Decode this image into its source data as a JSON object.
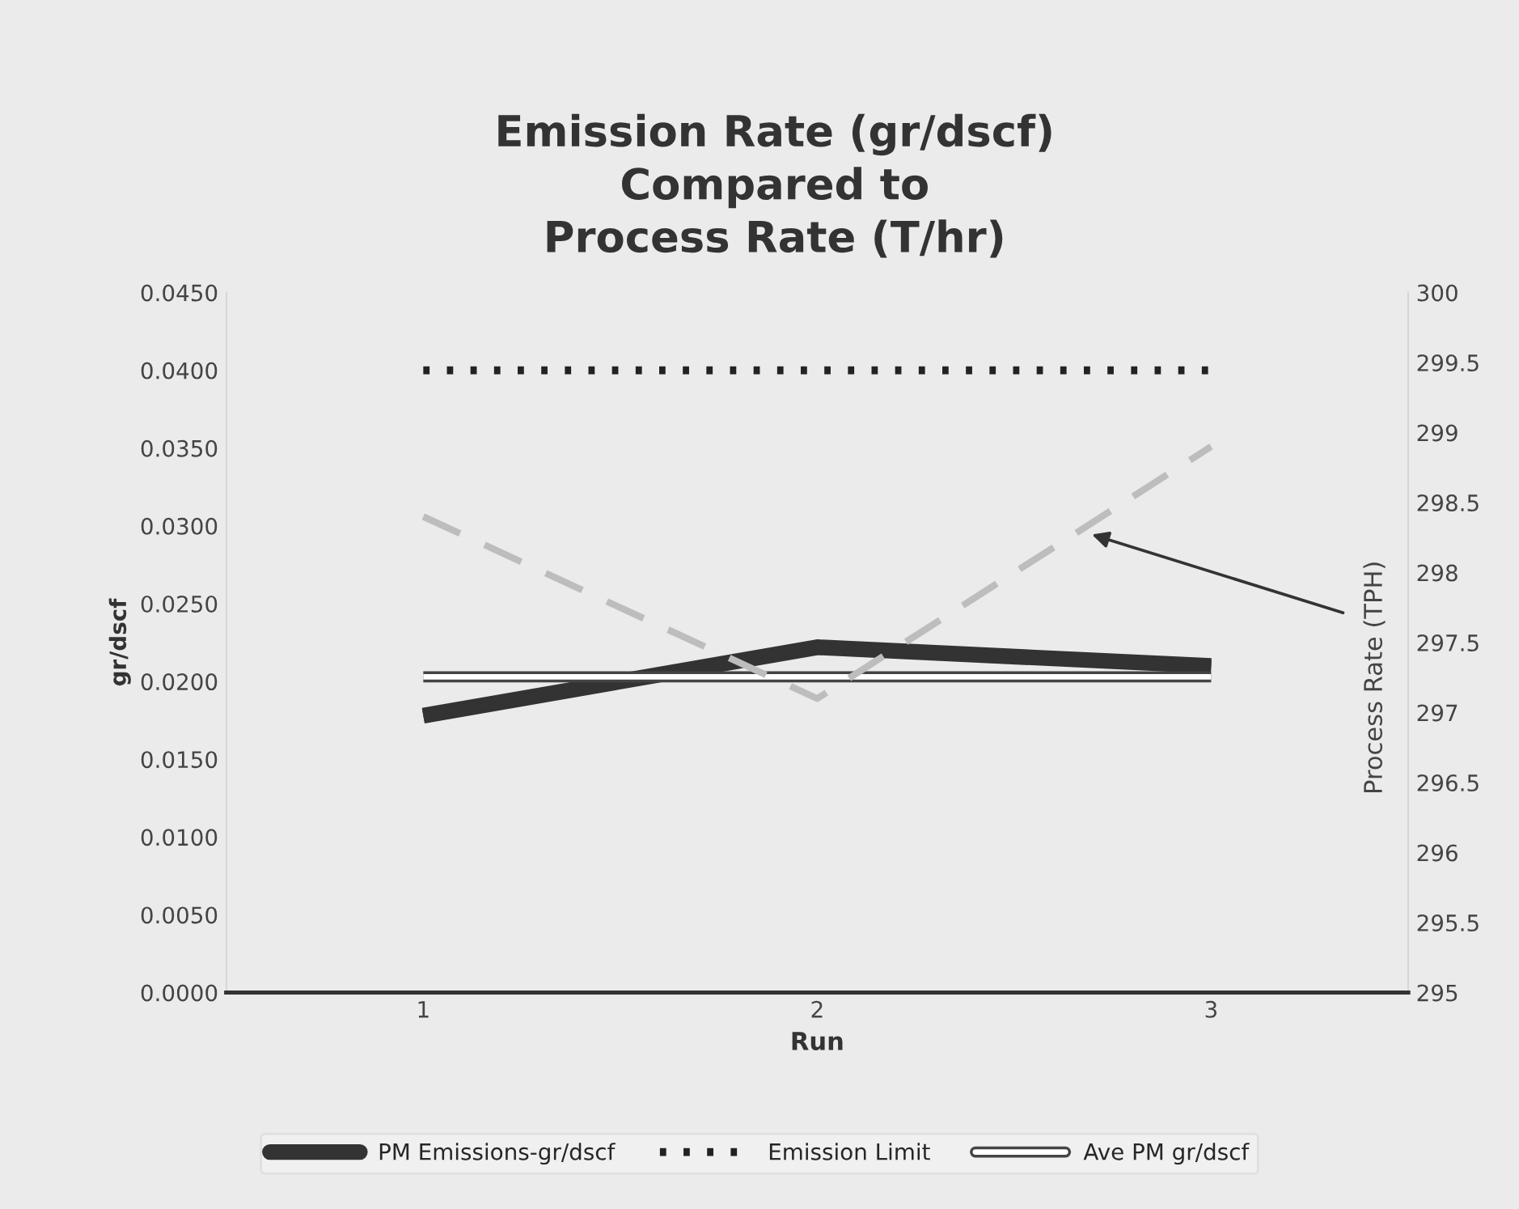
{
  "chart_data": {
    "type": "line",
    "title": "Emission Rate (gr/dscf)\nCompared to\nProcess Rate (T/hr)",
    "xlabel": "Run",
    "ylabel": "gr/dscf",
    "y2label": "Process Rate (TPH)",
    "categories": [
      "1",
      "2",
      "3"
    ],
    "series": [
      {
        "name": "PM Emissions-gr/dscf",
        "color": "#333333",
        "values": [
          0.0178,
          0.0222,
          0.021
        ],
        "line_style": "solid"
      },
      {
        "name": "Emission Limit",
        "color": "#222222",
        "values": [
          0.04,
          0.04,
          0.04
        ],
        "line_style": "dotted"
      },
      {
        "name": "Ave PM gr/dscf",
        "color": "#ffffff",
        "values": [
          0.0203,
          0.0203,
          0.0203
        ],
        "line_style": "solid"
      },
      {
        "color": "#bdbdbd",
        "values": [
          298.4,
          297.1,
          298.9
        ],
        "line_style": "dashed",
        "axis": "y2"
      }
    ],
    "ylim": [
      0,
      0.045
    ],
    "yticks": [
      {
        "value": 0,
        "label": "0.0000"
      },
      {
        "value": 0.005,
        "label": "0.0050"
      },
      {
        "value": 0.01,
        "label": "0.0100"
      },
      {
        "value": 0.015,
        "label": "0.0150"
      },
      {
        "value": 0.02,
        "label": "0.0200"
      },
      {
        "value": 0.025,
        "label": "0.0250"
      },
      {
        "value": 0.03,
        "label": "0.0300"
      },
      {
        "value": 0.035,
        "label": "0.0350"
      },
      {
        "value": 0.04,
        "label": "0.0400"
      },
      {
        "value": 0.045,
        "label": "0.0450"
      }
    ],
    "y2lim": [
      295,
      300
    ],
    "y2ticks": [
      295,
      295.5,
      296,
      296.5,
      297,
      297.5,
      298,
      298.5,
      299,
      299.5,
      300
    ],
    "grid": false,
    "legend": "bottom",
    "marker": "none"
  }
}
